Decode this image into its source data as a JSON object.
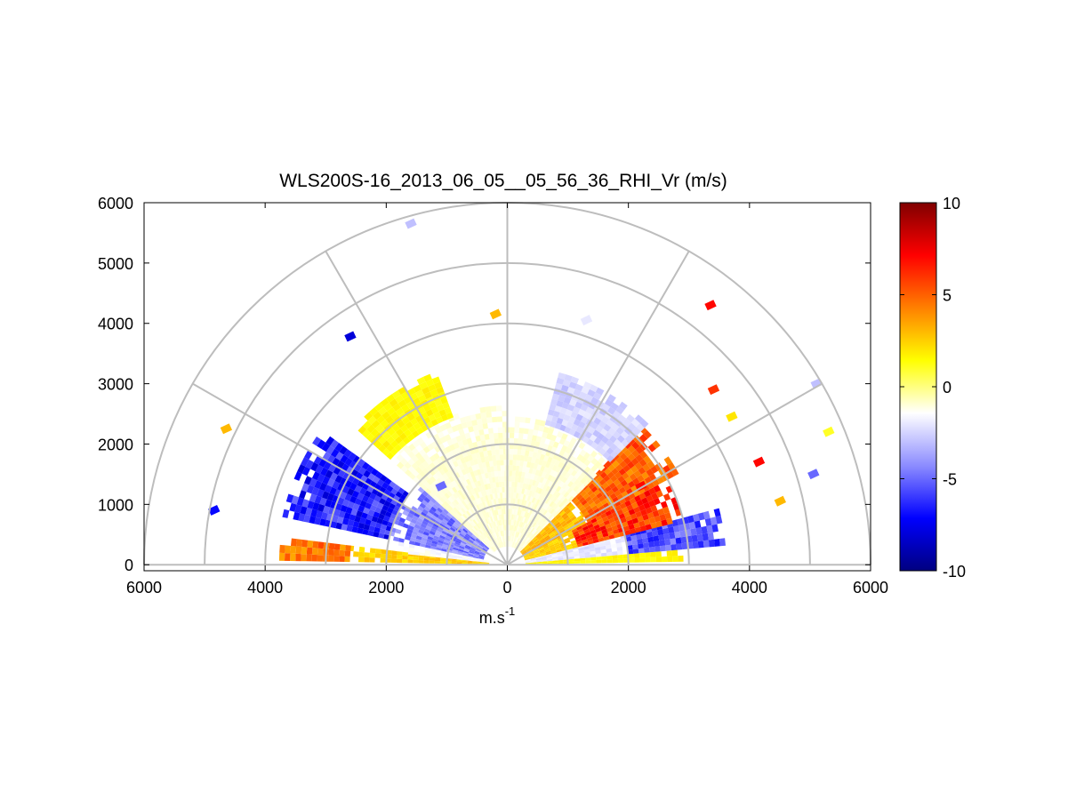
{
  "chart_data": {
    "type": "heatmap",
    "title": "WLS200S-16_2013_06_05__05_56_36_RHI_Vr (m/s)",
    "xlabel_base": "m.s",
    "xlabel_exp": "-1",
    "ylabel": "",
    "xlim": [
      -6000,
      6000
    ],
    "ylim": [
      -100,
      6000
    ],
    "x_ticks": [
      -6000,
      -4000,
      -2000,
      0,
      2000,
      4000,
      6000
    ],
    "x_tick_labels": [
      "6000",
      "4000",
      "2000",
      "0",
      "2000",
      "4000",
      "6000"
    ],
    "y_ticks": [
      0,
      1000,
      2000,
      3000,
      4000,
      5000,
      6000
    ],
    "y_tick_labels": [
      "0",
      "1000",
      "2000",
      "3000",
      "4000",
      "5000",
      "6000"
    ],
    "polar_grid": {
      "range_rings": [
        1000,
        2000,
        3000,
        4000,
        5000,
        6000
      ],
      "spokes_deg": [
        0,
        30,
        60,
        90,
        120,
        150,
        180
      ]
    },
    "colorbar": {
      "min": -10,
      "max": 10,
      "ticks": [
        10,
        5,
        0,
        -5,
        -10
      ],
      "tick_labels": [
        "10",
        "5",
        "0",
        "-5",
        "-10"
      ],
      "colors": [
        "#000080",
        "#0000ff",
        "#8c8cff",
        "#ffffff",
        "#ffff00",
        "#ff8000",
        "#ff0000",
        "#800000"
      ]
    },
    "bands": [
      {
        "el_deg": [
          1,
          6
        ],
        "range": [
          300,
          2600
        ],
        "vr": 2.5,
        "side": "left"
      },
      {
        "el_deg": [
          1,
          6
        ],
        "range": [
          2600,
          3700
        ],
        "vr": 4.5,
        "side": "left"
      },
      {
        "el_deg": [
          6,
          12
        ],
        "range": [
          300,
          1800
        ],
        "vr": -1.5,
        "side": "left"
      },
      {
        "el_deg": [
          12,
          42
        ],
        "range": [
          400,
          2000
        ],
        "vr": -4.5,
        "side": "left"
      },
      {
        "el_deg": [
          12,
          35
        ],
        "range": [
          2000,
          3800
        ],
        "vr": -6.5,
        "side": "left"
      },
      {
        "el_deg": [
          42,
          90
        ],
        "range": [
          300,
          2600
        ],
        "vr": -1.0,
        "side": "left"
      },
      {
        "el_deg": [
          42,
          70
        ],
        "range": [
          2600,
          3400
        ],
        "vr": 1.5,
        "side": "left"
      },
      {
        "el_deg": [
          1,
          5
        ],
        "range": [
          300,
          3000
        ],
        "vr": 1.5,
        "side": "right"
      },
      {
        "el_deg": [
          5,
          14
        ],
        "range": [
          300,
          2000
        ],
        "vr": -2.0,
        "side": "right"
      },
      {
        "el_deg": [
          5,
          14
        ],
        "range": [
          2000,
          3600
        ],
        "vr": -5.5,
        "side": "right"
      },
      {
        "el_deg": [
          14,
          28
        ],
        "range": [
          300,
          1200
        ],
        "vr": 2.5,
        "side": "right"
      },
      {
        "el_deg": [
          14,
          28
        ],
        "range": [
          1200,
          3000
        ],
        "vr": 6.0,
        "side": "right"
      },
      {
        "el_deg": [
          28,
          45
        ],
        "range": [
          300,
          1500
        ],
        "vr": 3.0,
        "side": "right"
      },
      {
        "el_deg": [
          28,
          45
        ],
        "range": [
          1500,
          3200
        ],
        "vr": 5.0,
        "side": "right"
      },
      {
        "el_deg": [
          45,
          90
        ],
        "range": [
          300,
          2400
        ],
        "vr": -1.0,
        "side": "right"
      },
      {
        "el_deg": [
          45,
          75
        ],
        "range": [
          2400,
          3300
        ],
        "vr": -2.5,
        "side": "right"
      }
    ],
    "isolated_points": [
      {
        "x": -1600,
        "y": 5650,
        "vr": -3
      },
      {
        "x": -2600,
        "y": 3780,
        "vr": -8
      },
      {
        "x": -200,
        "y": 4150,
        "vr": 3
      },
      {
        "x": 1300,
        "y": 4050,
        "vr": -2
      },
      {
        "x": 3350,
        "y": 4300,
        "vr": 7
      },
      {
        "x": -4650,
        "y": 2250,
        "vr": 3
      },
      {
        "x": -4850,
        "y": 900,
        "vr": -7
      },
      {
        "x": 5300,
        "y": 2200,
        "vr": 1
      },
      {
        "x": 5100,
        "y": 3000,
        "vr": -3
      },
      {
        "x": 5050,
        "y": 1500,
        "vr": -5
      },
      {
        "x": 4500,
        "y": 1050,
        "vr": 3
      },
      {
        "x": 3700,
        "y": 2450,
        "vr": 2
      },
      {
        "x": 3400,
        "y": 2900,
        "vr": 6
      },
      {
        "x": -1100,
        "y": 1300,
        "vr": -5
      },
      {
        "x": 2200,
        "y": 1300,
        "vr": 7
      },
      {
        "x": 4150,
        "y": 1700,
        "vr": 7
      }
    ]
  }
}
